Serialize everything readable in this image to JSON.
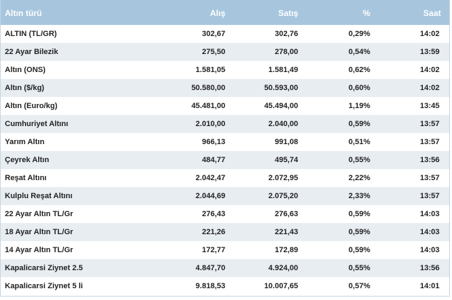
{
  "table": {
    "columns": {
      "name": "Altın türü",
      "buy": "Alış",
      "sell": "Satış",
      "pct": "%",
      "time": "Saat"
    },
    "rows": [
      {
        "name": "ALTIN (TL/GR)",
        "buy": "302,67",
        "sell": "302,76",
        "pct": "0,29%",
        "time": "14:02"
      },
      {
        "name": "22 Ayar Bilezik",
        "buy": "275,50",
        "sell": "278,00",
        "pct": "0,54%",
        "time": "13:59"
      },
      {
        "name": "Altın (ONS)",
        "buy": "1.581,05",
        "sell": "1.581,49",
        "pct": "0,62%",
        "time": "14:02"
      },
      {
        "name": "Altın ($/kg)",
        "buy": "50.580,00",
        "sell": "50.593,00",
        "pct": "0,60%",
        "time": "14:02"
      },
      {
        "name": "Altın (Euro/kg)",
        "buy": "45.481,00",
        "sell": "45.494,00",
        "pct": "1,19%",
        "time": "13:45"
      },
      {
        "name": "Cumhuriyet Altını",
        "buy": "2.010,00",
        "sell": "2.040,00",
        "pct": "0,59%",
        "time": "13:57"
      },
      {
        "name": "Yarım Altın",
        "buy": "966,13",
        "sell": "991,08",
        "pct": "0,51%",
        "time": "13:57"
      },
      {
        "name": "Çeyrek Altın",
        "buy": "484,77",
        "sell": "495,74",
        "pct": "0,55%",
        "time": "13:56"
      },
      {
        "name": "Reşat Altını",
        "buy": "2.042,47",
        "sell": "2.072,95",
        "pct": "2,22%",
        "time": "13:57"
      },
      {
        "name": "Kulplu Reşat Altını",
        "buy": "2.044,69",
        "sell": "2.075,20",
        "pct": "2,33%",
        "time": "13:57"
      },
      {
        "name": "22 Ayar Altın TL/Gr",
        "buy": "276,43",
        "sell": "276,63",
        "pct": "0,59%",
        "time": "14:03"
      },
      {
        "name": "18 Ayar Altın TL/Gr",
        "buy": "221,26",
        "sell": "221,43",
        "pct": "0,59%",
        "time": "14:03"
      },
      {
        "name": "14 Ayar Altın TL/Gr",
        "buy": "172,77",
        "sell": "172,89",
        "pct": "0,59%",
        "time": "14:03"
      },
      {
        "name": "Kapalicarsi Ziynet 2.5",
        "buy": "4.847,70",
        "sell": "4.924,00",
        "pct": "0,55%",
        "time": "13:56"
      },
      {
        "name": "Kapalicarsi Ziynet 5 li",
        "buy": "9.818,53",
        "sell": "10.007,65",
        "pct": "0,57%",
        "time": "14:01"
      }
    ]
  },
  "colors": {
    "header_bg": "#a7c6de",
    "header_text": "#ffffff",
    "row_alt_bg": "#e8edf2",
    "row_bg": "#ffffff",
    "text": "#222222"
  }
}
